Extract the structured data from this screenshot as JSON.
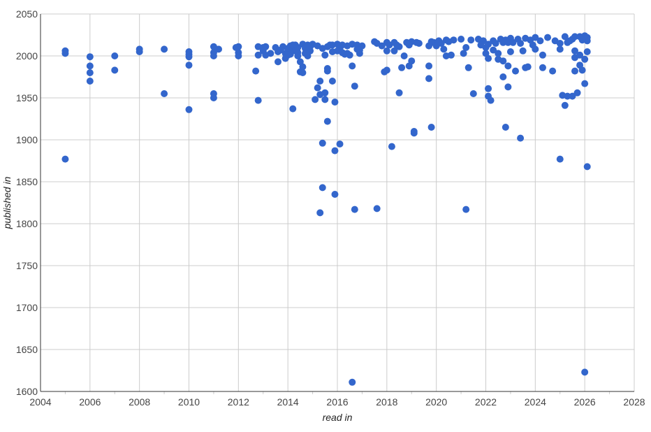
{
  "chart_data": {
    "type": "scatter",
    "xlabel": "read in",
    "ylabel": "published in",
    "xlim": [
      2004,
      2028
    ],
    "ylim": [
      1600,
      2050
    ],
    "x_ticks": [
      "2004",
      "2006",
      "2008",
      "2010",
      "2012",
      "2014",
      "2016",
      "2018",
      "2020",
      "2022",
      "2024",
      "2026",
      "2028"
    ],
    "y_ticks": [
      "1600",
      "1650",
      "1700",
      "1750",
      "1800",
      "1850",
      "1900",
      "1950",
      "2000",
      "2050"
    ],
    "grid": true,
    "legend": "none",
    "marker_color": "#3366cc",
    "series": [
      {
        "points": [
          [
            2005.0,
            2006
          ],
          [
            2005.0,
            2003
          ],
          [
            2005.0,
            1877
          ],
          [
            2006.0,
            1999
          ],
          [
            2006.0,
            1988
          ],
          [
            2006.0,
            1980
          ],
          [
            2006.0,
            1970
          ],
          [
            2007.0,
            2000
          ],
          [
            2007.0,
            1983
          ],
          [
            2008.0,
            2008
          ],
          [
            2008.0,
            2005
          ],
          [
            2009.0,
            2008
          ],
          [
            2009.0,
            1955
          ],
          [
            2010.0,
            2005
          ],
          [
            2010.0,
            2002
          ],
          [
            2010.0,
            1999
          ],
          [
            2010.0,
            1989
          ],
          [
            2010.0,
            1936
          ],
          [
            2011.0,
            2011
          ],
          [
            2011.0,
            2004
          ],
          [
            2011.0,
            2000
          ],
          [
            2011.0,
            1955
          ],
          [
            2011.0,
            1950
          ],
          [
            2011.2,
            2008
          ],
          [
            2011.9,
            2010
          ],
          [
            2012.0,
            2011
          ],
          [
            2012.0,
            2004
          ],
          [
            2012.0,
            2000
          ],
          [
            2012.7,
            1982
          ],
          [
            2012.8,
            2011
          ],
          [
            2012.8,
            2001
          ],
          [
            2012.8,
            1947
          ],
          [
            2013.0,
            2010
          ],
          [
            2013.0,
            2006
          ],
          [
            2013.1,
            2011
          ],
          [
            2013.1,
            2001
          ],
          [
            2013.5,
            2010
          ],
          [
            2013.6,
            2005
          ],
          [
            2013.6,
            1993
          ],
          [
            2013.8,
            2011
          ],
          [
            2013.9,
            2003
          ],
          [
            2013.9,
            1997
          ],
          [
            2014.0,
            2009
          ],
          [
            2014.1,
            2012
          ],
          [
            2014.1,
            2002
          ],
          [
            2014.2,
            2007
          ],
          [
            2014.2,
            1937
          ],
          [
            2014.3,
            2013
          ],
          [
            2014.4,
            2004
          ],
          [
            2014.4,
            2000
          ],
          [
            2014.5,
            1993
          ],
          [
            2014.5,
            1981
          ],
          [
            2014.6,
            1987
          ],
          [
            2014.6,
            1980
          ],
          [
            2014.6,
            2014
          ],
          [
            2014.7,
            2009
          ],
          [
            2014.8,
            2013
          ],
          [
            2014.9,
            2006
          ],
          [
            2015.0,
            2014
          ],
          [
            2015.1,
            1948
          ],
          [
            2015.2,
            1962
          ],
          [
            2015.3,
            1970
          ],
          [
            2015.3,
            1954
          ],
          [
            2015.3,
            1813
          ],
          [
            2015.4,
            1896
          ],
          [
            2015.4,
            1843
          ],
          [
            2015.5,
            1948
          ],
          [
            2015.5,
            1956
          ],
          [
            2015.5,
            2001
          ],
          [
            2015.6,
            1985
          ],
          [
            2015.6,
            1982
          ],
          [
            2015.6,
            1922
          ],
          [
            2015.7,
            2013
          ],
          [
            2015.8,
            2005
          ],
          [
            2015.8,
            1970
          ],
          [
            2015.9,
            1945
          ],
          [
            2015.9,
            1887
          ],
          [
            2015.9,
            1835
          ],
          [
            2016.0,
            2014
          ],
          [
            2016.1,
            2009
          ],
          [
            2016.1,
            1895
          ],
          [
            2016.2,
            2004
          ],
          [
            2016.3,
            2002
          ],
          [
            2016.4,
            2012
          ],
          [
            2016.5,
            2001
          ],
          [
            2016.6,
            1988
          ],
          [
            2016.6,
            1611
          ],
          [
            2016.7,
            1817
          ],
          [
            2016.7,
            1964
          ],
          [
            2016.8,
            2008
          ],
          [
            2016.9,
            2003
          ],
          [
            2017.0,
            2012
          ],
          [
            2017.6,
            1818
          ],
          [
            2017.6,
            2015
          ],
          [
            2017.8,
            2012
          ],
          [
            2017.9,
            1981
          ],
          [
            2018.0,
            2016
          ],
          [
            2018.0,
            2006
          ],
          [
            2018.0,
            1983
          ],
          [
            2018.2,
            1892
          ],
          [
            2018.3,
            2016
          ],
          [
            2018.3,
            2006
          ],
          [
            2018.5,
            2011
          ],
          [
            2018.5,
            1956
          ],
          [
            2018.6,
            1986
          ],
          [
            2018.7,
            2000
          ],
          [
            2018.8,
            2016
          ],
          [
            2018.9,
            1988
          ],
          [
            2019.0,
            2017
          ],
          [
            2019.0,
            1994
          ],
          [
            2019.1,
            1908
          ],
          [
            2019.1,
            1910
          ],
          [
            2019.2,
            2016
          ],
          [
            2019.7,
            2012
          ],
          [
            2019.7,
            1988
          ],
          [
            2019.7,
            1973
          ],
          [
            2019.8,
            1915
          ],
          [
            2019.9,
            2016
          ],
          [
            2020.0,
            2012
          ],
          [
            2020.1,
            2018
          ],
          [
            2020.3,
            2008
          ],
          [
            2020.4,
            2019
          ],
          [
            2020.4,
            2000
          ],
          [
            2020.6,
            2001
          ],
          [
            2020.7,
            2019
          ],
          [
            2021.0,
            2020
          ],
          [
            2021.1,
            2003
          ],
          [
            2021.2,
            2010
          ],
          [
            2021.2,
            1817
          ],
          [
            2021.3,
            1986
          ],
          [
            2021.4,
            2019
          ],
          [
            2021.5,
            1955
          ],
          [
            2021.7,
            2020
          ],
          [
            2021.9,
            2018
          ],
          [
            2022.0,
            2010
          ],
          [
            2022.0,
            2003
          ],
          [
            2022.1,
            1997
          ],
          [
            2022.1,
            1961
          ],
          [
            2022.1,
            1952
          ],
          [
            2022.2,
            1947
          ],
          [
            2022.3,
            2018
          ],
          [
            2022.3,
            2007
          ],
          [
            2022.5,
            2003
          ],
          [
            2022.5,
            1996
          ],
          [
            2022.6,
            2020
          ],
          [
            2022.7,
            1994
          ],
          [
            2022.7,
            1975
          ],
          [
            2022.8,
            2019
          ],
          [
            2022.8,
            1915
          ],
          [
            2022.9,
            1988
          ],
          [
            2022.9,
            1963
          ],
          [
            2023.0,
            2005
          ],
          [
            2023.0,
            2021
          ],
          [
            2023.2,
            1982
          ],
          [
            2023.3,
            2020
          ],
          [
            2023.4,
            2015
          ],
          [
            2023.4,
            1902
          ],
          [
            2023.5,
            2006
          ],
          [
            2023.6,
            2021
          ],
          [
            2023.6,
            1986
          ],
          [
            2023.7,
            1987
          ],
          [
            2023.8,
            2019
          ],
          [
            2024.0,
            2022
          ],
          [
            2024.0,
            2008
          ],
          [
            2024.2,
            2018
          ],
          [
            2024.3,
            2001
          ],
          [
            2024.3,
            1986
          ],
          [
            2024.5,
            2022
          ],
          [
            2024.7,
            1982
          ],
          [
            2024.8,
            2018
          ],
          [
            2025.0,
            2015
          ],
          [
            2025.0,
            2008
          ],
          [
            2025.0,
            1877
          ],
          [
            2025.1,
            1953
          ],
          [
            2025.2,
            2023
          ],
          [
            2025.2,
            1941
          ],
          [
            2025.3,
            2016
          ],
          [
            2025.3,
            1952
          ],
          [
            2025.5,
            2020
          ],
          [
            2025.5,
            1952
          ],
          [
            2025.6,
            2023
          ],
          [
            2025.6,
            2006
          ],
          [
            2025.6,
            1998
          ],
          [
            2025.6,
            1982
          ],
          [
            2025.7,
            1956
          ],
          [
            2025.8,
            2023
          ],
          [
            2025.8,
            1989
          ],
          [
            2025.8,
            2001
          ],
          [
            2025.9,
            1983
          ],
          [
            2026.0,
            2024
          ],
          [
            2026.0,
            1996
          ],
          [
            2026.0,
            1967
          ],
          [
            2026.0,
            1623
          ],
          [
            2026.1,
            2022
          ],
          [
            2026.1,
            2018
          ],
          [
            2026.1,
            2005
          ],
          [
            2026.1,
            1868
          ],
          [
            2014.0,
            2001
          ],
          [
            2014.2,
            2013
          ],
          [
            2014.3,
            2006
          ],
          [
            2014.7,
            2003
          ],
          [
            2014.8,
            2000
          ],
          [
            2014.9,
            2011
          ],
          [
            2015.2,
            2012
          ],
          [
            2015.4,
            2009
          ],
          [
            2015.6,
            2011
          ],
          [
            2015.8,
            2013
          ],
          [
            2016.2,
            2013
          ],
          [
            2016.4,
            2003
          ],
          [
            2016.6,
            2014
          ],
          [
            2016.8,
            2013
          ],
          [
            2016.9,
            2007
          ],
          [
            2017.5,
            2017
          ],
          [
            2018.1,
            2013
          ],
          [
            2018.4,
            2013
          ],
          [
            2018.9,
            2013
          ],
          [
            2019.3,
            2015
          ],
          [
            2019.8,
            2017
          ],
          [
            2020.2,
            2015
          ],
          [
            2020.5,
            2017
          ],
          [
            2021.8,
            2013
          ],
          [
            2022.1,
            2014
          ],
          [
            2022.4,
            2015
          ],
          [
            2022.7,
            2016
          ],
          [
            2022.9,
            2016
          ],
          [
            2023.1,
            2016
          ],
          [
            2023.9,
            2013
          ],
          [
            2025.4,
            2018
          ],
          [
            2025.9,
            2019
          ],
          [
            2013.7,
            2007
          ],
          [
            2013.3,
            2003
          ],
          [
            2014.4,
            2010
          ],
          [
            2016.0,
            2006
          ]
        ]
      }
    ]
  }
}
